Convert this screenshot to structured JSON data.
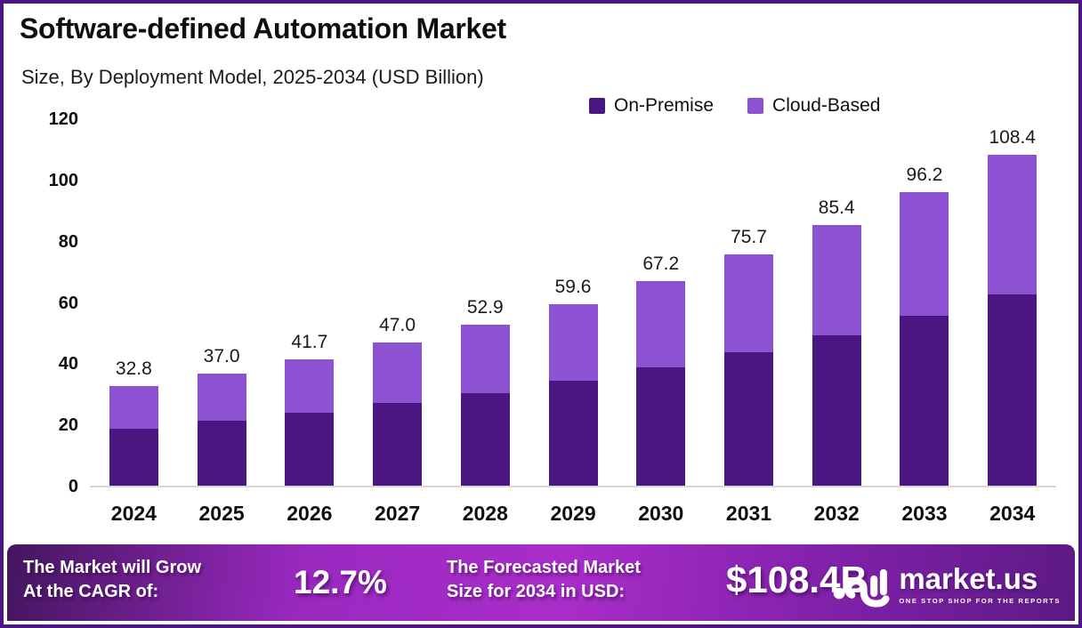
{
  "header": {
    "title": "Software-defined Automation Market",
    "subtitle": "Size, By Deployment Model, 2025-2034 (USD Billion)"
  },
  "legend": [
    {
      "label": "On-Premise",
      "color": "#4a1782"
    },
    {
      "label": "Cloud-Based",
      "color": "#8c52d2"
    }
  ],
  "chart_data": {
    "type": "bar",
    "stacked": true,
    "title": "Software-defined Automation Market Size, By Deployment Model, 2025-2034 (USD Billion)",
    "categories": [
      "2024",
      "2025",
      "2026",
      "2027",
      "2028",
      "2029",
      "2030",
      "2031",
      "2032",
      "2033",
      "2034"
    ],
    "series": [
      {
        "name": "On-Premise",
        "color": "#4a1782",
        "values": [
          19.0,
          21.4,
          24.1,
          27.2,
          30.5,
          34.5,
          38.9,
          43.8,
          49.4,
          55.7,
          62.7
        ]
      },
      {
        "name": "Cloud-Based",
        "color": "#8c52d2",
        "values": [
          13.8,
          15.6,
          17.6,
          19.8,
          22.4,
          25.1,
          28.3,
          31.9,
          36.0,
          40.5,
          45.7
        ]
      }
    ],
    "totals": [
      32.8,
      37.0,
      41.7,
      47.0,
      52.9,
      59.6,
      67.2,
      75.7,
      85.4,
      96.2,
      108.4
    ],
    "total_labels": [
      "32.8",
      "37.0",
      "41.7",
      "47.0",
      "52.9",
      "59.6",
      "67.2",
      "75.7",
      "85.4",
      "96.2",
      "108.4"
    ],
    "xlabel": "",
    "ylabel": "",
    "ylim": [
      0,
      120
    ],
    "yticks": [
      0,
      20,
      40,
      60,
      80,
      100,
      120
    ],
    "grid": false,
    "legend_position": "top-right",
    "axis_line_color": "#d8d8d8"
  },
  "banner": {
    "cagr_line1": "The Market will Grow",
    "cagr_line2": "At the CAGR of:",
    "cagr_value": "12.7%",
    "forecast_line1": "The Forecasted Market",
    "forecast_line2": "Size for 2034 in USD:",
    "forecast_value": "$108.4B",
    "brand": "market.us",
    "tagline": "ONE STOP SHOP FOR THE REPORTS",
    "gradient_colors": [
      "#44165f",
      "#a92dc9",
      "#5c1a83"
    ]
  },
  "frame": {
    "border_color": "#4a1782",
    "background": "#ffffff"
  }
}
